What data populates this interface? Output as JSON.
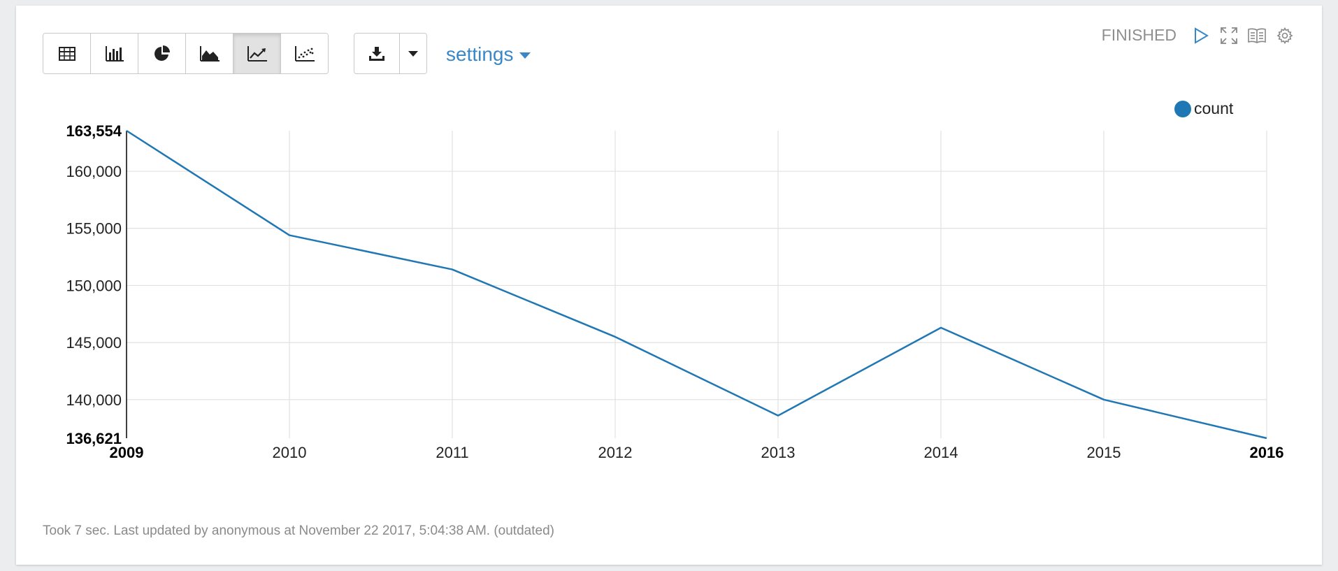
{
  "toolbar": {
    "viz_buttons": [
      {
        "name": "table-icon",
        "active": false
      },
      {
        "name": "bar-chart-icon",
        "active": false
      },
      {
        "name": "pie-chart-icon",
        "active": false
      },
      {
        "name": "area-chart-icon",
        "active": false
      },
      {
        "name": "line-chart-icon",
        "active": true
      },
      {
        "name": "scatter-chart-icon",
        "active": false
      }
    ],
    "download_icon": "download-icon",
    "settings_label": "settings"
  },
  "status": {
    "text": "FINISHED",
    "icons": [
      "play-icon",
      "expand-icon",
      "book-icon",
      "gear-icon"
    ]
  },
  "colors": {
    "series": "#1f77b4",
    "accent": "#3a87c8",
    "grid": "#e1e1e1"
  },
  "chart_data": {
    "type": "line",
    "x": [
      2009,
      2010,
      2011,
      2012,
      2013,
      2014,
      2015,
      2016
    ],
    "series": [
      {
        "name": "count",
        "values": [
          163554,
          154400,
          151400,
          145500,
          138600,
          146300,
          140000,
          136621
        ]
      }
    ],
    "x_ticks": [
      "2009",
      "2010",
      "2011",
      "2012",
      "2013",
      "2014",
      "2015",
      "2016"
    ],
    "y_ticks": [
      140000,
      145000,
      150000,
      155000,
      160000
    ],
    "y_tick_labels": [
      "140,000",
      "145,000",
      "150,000",
      "155,000",
      "160,000"
    ],
    "y_min_label": "136,621",
    "y_max_label": "163,554",
    "ylim": [
      136621,
      163554
    ],
    "grid": true,
    "legend": "top-right"
  },
  "footer": {
    "text": "Took 7 sec. Last updated by anonymous at November 22 2017, 5:04:38 AM. (outdated)"
  }
}
